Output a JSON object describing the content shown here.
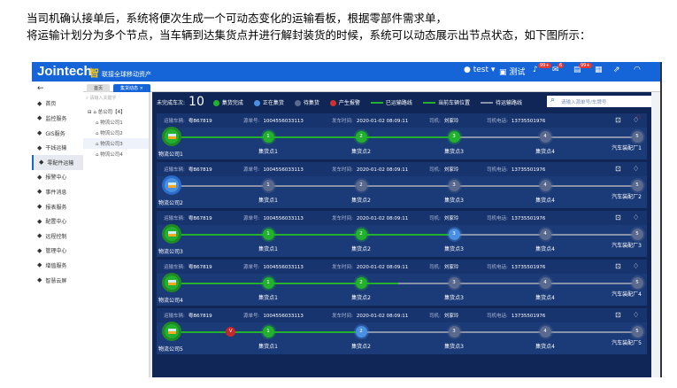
{
  "caption": [
    "当司机确认接单后，系统将便次生成一个可动态变化的运输看板，根据零部件需求单，",
    "将运输计划分为多个节点，当车辆到达集货点并进行解封装货的时候，系统可以动态展示出节点状态，如下图所示："
  ],
  "header": {
    "logo": "Jointech",
    "slogan_mark": "智",
    "slogan": "联接全球移动资产",
    "user": "test",
    "lang": "测试",
    "badges": [
      "99+",
      "6",
      "99+"
    ]
  },
  "sidebar": {
    "back": "←",
    "items": [
      "首页",
      "监控服务",
      "GIS服务",
      "干线运输",
      "零配件运输",
      "报警中心",
      "事件消息",
      "报表服务",
      "配置中心",
      "远程控制",
      "管理中心",
      "增值服务",
      "智慧云屏"
    ],
    "active": 4
  },
  "tabs": [
    "首页",
    "集货动态"
  ],
  "tree": {
    "placeholder": "请输入关键字",
    "root": "总公司【4】",
    "children": [
      "物流公司1",
      "物流公司2",
      "物流公司3",
      "物流公司4"
    ],
    "selected": 2
  },
  "board": {
    "unfinished_label": "未完成车次:",
    "unfinished_count": "10",
    "legend": [
      {
        "label": "集货完成",
        "color": "#22b02e"
      },
      {
        "label": "正在集货",
        "color": "#4a90e2"
      },
      {
        "label": "待集货",
        "color": "#5a6a8e"
      },
      {
        "label": "产生报警",
        "color": "#d0312d"
      }
    ],
    "line_legend": [
      {
        "label": "已运输路线",
        "color": "#22b02e"
      },
      {
        "label": "当前车辆位置",
        "color": "#22b02e"
      },
      {
        "label": "待运输路线",
        "color": "#8892a8"
      }
    ],
    "search_placeholder": "请输入源单号/车牌号",
    "field_labels": {
      "vehicle": "运输车辆:",
      "order": "源单号:",
      "depart": "发车时间:",
      "driver": "司机:",
      "phone": "司机电话:"
    },
    "node_labels": [
      "集货点1",
      "集货点2",
      "集货点3",
      "集货点4"
    ],
    "rows": [
      {
        "vehicle": "粤B67819",
        "order": "1004556033113",
        "depart": "2020-01-02 08:09:11",
        "driver": "刘家玲",
        "phone": "13735501976",
        "origin": "物流公司1",
        "dest": "汽车装配厂1",
        "origin_state": "done",
        "states": [
          "done",
          "done",
          "done",
          "pending",
          "pending"
        ],
        "progress": 3,
        "alarm": false,
        "bell_alert": true
      },
      {
        "vehicle": "粤B67819",
        "order": "1004556033113",
        "depart": "2020-01-02 08:09:11",
        "driver": "刘家玲",
        "phone": "13735501976",
        "origin": "物流公司2",
        "dest": "汽车装配厂2",
        "origin_state": "active",
        "states": [
          "pending",
          "pending",
          "pending",
          "pending",
          "pending"
        ],
        "progress": 0,
        "alarm": false,
        "bell_alert": false
      },
      {
        "vehicle": "粤B67819",
        "order": "1004556033113",
        "depart": "2020-01-02 08:09:11",
        "driver": "刘家玲",
        "phone": "13735501976",
        "origin": "物流公司3",
        "dest": "汽车装配厂3",
        "origin_state": "done",
        "states": [
          "done",
          "done",
          "active",
          "pending",
          "pending"
        ],
        "progress": 3,
        "alarm": false,
        "bell_alert": false
      },
      {
        "vehicle": "粤B67819",
        "order": "1004556033113",
        "depart": "2020-01-02 08:09:11",
        "driver": "刘家玲",
        "phone": "13735501976",
        "origin": "物流公司4",
        "dest": "汽车装配厂4",
        "origin_state": "done",
        "states": [
          "done",
          "done",
          "pending",
          "pending",
          "pending"
        ],
        "progress": 2.4,
        "alarm": false,
        "bell_alert": false
      },
      {
        "vehicle": "粤B67819",
        "order": "1004556033113",
        "depart": "2020-01-02 08:09:11",
        "driver": "刘家玲",
        "phone": "13735501976",
        "origin": "物流公司5",
        "dest": "汽车装配厂5",
        "origin_state": "done",
        "states": [
          "done",
          "active",
          "pending",
          "pending",
          "pending"
        ],
        "progress": 2,
        "alarm": true,
        "alarm_label": "V",
        "bell_alert": false
      }
    ]
  }
}
